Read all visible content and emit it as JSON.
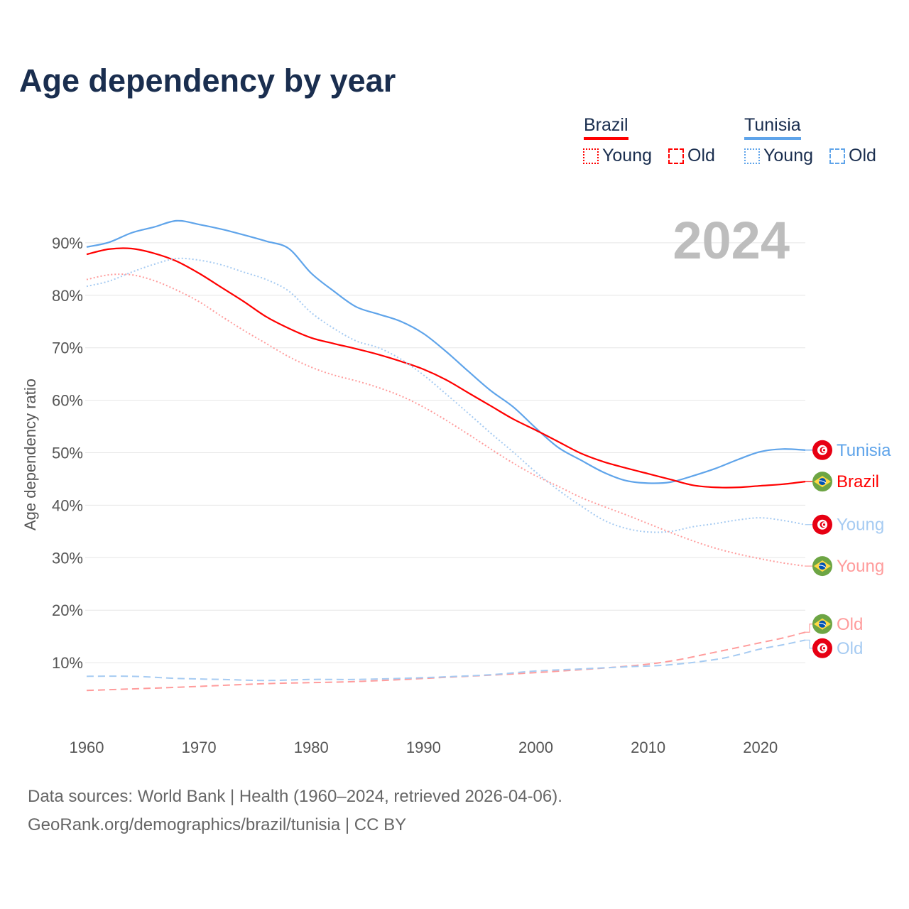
{
  "title": "Age dependency by year",
  "legend": {
    "countries": [
      {
        "name": "Brazil",
        "color": "#ff0000",
        "items": [
          "Young",
          "Old"
        ]
      },
      {
        "name": "Tunisia",
        "color": "#5fa4ea",
        "items": [
          "Young",
          "Old"
        ]
      }
    ]
  },
  "footer": {
    "line1": "Data sources: World Bank | Health (1960–2024, retrieved 2026-04-06).",
    "line2": "GeoRank.org/demographics/brazil/tunisia | CC BY"
  },
  "chart_data": {
    "type": "line",
    "title": "Age dependency by year",
    "year_label": "2024",
    "xlabel": "",
    "ylabel": "Age dependency ratio",
    "xlim": [
      1960,
      2024
    ],
    "ylim": [
      0,
      95
    ],
    "x_ticks": [
      "1960",
      "1970",
      "1980",
      "1990",
      "2000",
      "2010",
      "2020"
    ],
    "y_ticks": [
      "10%",
      "20%",
      "30%",
      "40%",
      "50%",
      "60%",
      "70%",
      "80%",
      "90%"
    ],
    "grid": true,
    "series": [
      {
        "name": "Tunisia",
        "label": "Tunisia",
        "country": "Tunisia",
        "style": "solid",
        "color": "#5fa4ea",
        "x": [
          1960,
          1962,
          1964,
          1966,
          1968,
          1970,
          1972,
          1974,
          1976,
          1978,
          1980,
          1982,
          1984,
          1986,
          1988,
          1990,
          1992,
          1994,
          1996,
          1998,
          2000,
          2002,
          2004,
          2006,
          2008,
          2010,
          2012,
          2014,
          2016,
          2018,
          2020,
          2022,
          2024
        ],
        "y": [
          89.2,
          90.1,
          91.9,
          93.0,
          94.2,
          93.5,
          92.6,
          91.5,
          90.3,
          88.9,
          84.2,
          80.8,
          77.8,
          76.4,
          75.0,
          72.7,
          69.3,
          65.5,
          61.8,
          58.7,
          54.7,
          51.0,
          48.6,
          46.3,
          44.7,
          44.2,
          44.4,
          45.6,
          47.0,
          48.7,
          50.2,
          50.7,
          50.5
        ]
      },
      {
        "name": "Brazil",
        "label": "Brazil",
        "country": "Brazil",
        "style": "solid",
        "color": "#ff0000",
        "x": [
          1960,
          1962,
          1964,
          1966,
          1968,
          1970,
          1972,
          1974,
          1976,
          1978,
          1980,
          1982,
          1984,
          1986,
          1988,
          1990,
          1992,
          1994,
          1996,
          1998,
          2000,
          2002,
          2004,
          2006,
          2008,
          2010,
          2012,
          2014,
          2016,
          2018,
          2020,
          2022,
          2024
        ],
        "y": [
          87.8,
          88.8,
          88.9,
          88.0,
          86.5,
          84.2,
          81.5,
          78.8,
          75.9,
          73.7,
          71.9,
          70.8,
          69.8,
          68.7,
          67.4,
          65.9,
          63.9,
          61.4,
          58.9,
          56.4,
          54.3,
          52.1,
          49.9,
          48.3,
          47.1,
          46.0,
          44.9,
          43.8,
          43.4,
          43.4,
          43.7,
          44.0,
          44.5
        ]
      },
      {
        "name": "Tunisia Young",
        "label": "Young",
        "country": "Tunisia",
        "style": "dotted",
        "color": "#a6cbf2",
        "x": [
          1960,
          1962,
          1964,
          1966,
          1968,
          1970,
          1972,
          1974,
          1976,
          1978,
          1980,
          1982,
          1984,
          1986,
          1988,
          1990,
          1992,
          1994,
          1996,
          1998,
          2000,
          2002,
          2004,
          2006,
          2008,
          2010,
          2012,
          2014,
          2016,
          2018,
          2020,
          2022,
          2024
        ],
        "y": [
          81.7,
          82.7,
          84.4,
          85.9,
          87.0,
          86.7,
          85.8,
          84.4,
          83.0,
          80.8,
          76.7,
          73.7,
          71.3,
          70.0,
          67.8,
          64.8,
          61.2,
          57.5,
          53.7,
          50.1,
          46.3,
          42.9,
          39.9,
          37.2,
          35.6,
          34.9,
          35.0,
          35.9,
          36.5,
          37.2,
          37.6,
          37.1,
          36.3
        ]
      },
      {
        "name": "Brazil Young",
        "label": "Young",
        "country": "Brazil",
        "style": "dotted",
        "color": "#ff9c9c",
        "x": [
          1960,
          1962,
          1964,
          1966,
          1968,
          1970,
          1972,
          1974,
          1976,
          1978,
          1980,
          1982,
          1984,
          1986,
          1988,
          1990,
          1992,
          1994,
          1996,
          1998,
          2000,
          2002,
          2004,
          2006,
          2008,
          2010,
          2012,
          2014,
          2016,
          2018,
          2020,
          2022,
          2024
        ],
        "y": [
          83.0,
          83.9,
          83.9,
          82.8,
          81.0,
          78.8,
          76.0,
          73.3,
          70.8,
          68.3,
          66.3,
          64.8,
          63.7,
          62.4,
          60.8,
          58.7,
          56.2,
          53.5,
          50.7,
          48.0,
          45.6,
          43.6,
          41.5,
          39.8,
          38.2,
          36.5,
          34.8,
          33.2,
          31.8,
          30.7,
          29.8,
          29.0,
          28.4
        ]
      },
      {
        "name": "Brazil Old",
        "label": "Old",
        "country": "Brazil",
        "style": "dashed",
        "color": "#ff9c9c",
        "x": [
          1960,
          1968,
          1976,
          1984,
          1992,
          2000,
          2008,
          2012,
          2016,
          2020,
          2022,
          2024
        ],
        "y": [
          4.7,
          5.3,
          6.0,
          6.4,
          7.2,
          8.1,
          9.3,
          10.3,
          12.0,
          13.8,
          14.7,
          15.8
        ]
      },
      {
        "name": "Tunisia Old",
        "label": "Old",
        "country": "Tunisia",
        "style": "dashed",
        "color": "#a6cbf2",
        "x": [
          1960,
          1964,
          1968,
          1972,
          1976,
          1980,
          1984,
          1988,
          1992,
          1996,
          2000,
          2004,
          2008,
          2012,
          2016,
          2018,
          2020,
          2022,
          2024
        ],
        "y": [
          7.4,
          7.4,
          7.0,
          6.8,
          6.6,
          6.8,
          6.8,
          7.0,
          7.3,
          7.7,
          8.4,
          8.8,
          9.2,
          9.6,
          10.6,
          11.5,
          12.6,
          13.4,
          14.3
        ]
      }
    ]
  }
}
